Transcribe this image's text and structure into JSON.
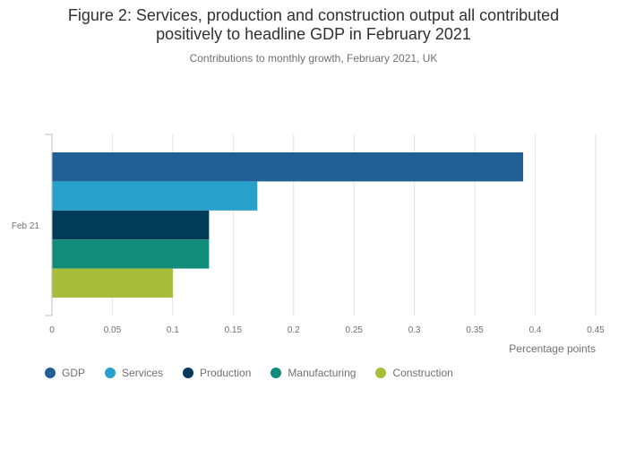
{
  "header": {
    "title_line1": "Figure 2: Services, production and construction output all contributed",
    "title_line2": "positively to headline GDP in February 2021",
    "subtitle": "Contributions to monthly growth, February 2021, UK"
  },
  "chart_data": {
    "type": "bar",
    "orientation": "horizontal",
    "categories": [
      "Feb 21"
    ],
    "series": [
      {
        "name": "GDP",
        "color": "#206095",
        "values": [
          0.39
        ]
      },
      {
        "name": "Services",
        "color": "#27a0cc",
        "values": [
          0.17
        ]
      },
      {
        "name": "Production",
        "color": "#003c57",
        "values": [
          0.13
        ]
      },
      {
        "name": "Manufacturing",
        "color": "#118c7b",
        "values": [
          0.13
        ]
      },
      {
        "name": "Construction",
        "color": "#a8bd3a",
        "values": [
          0.1
        ]
      }
    ],
    "xlabel": "Percentage points",
    "xlim": [
      0,
      0.45
    ],
    "xticks": [
      "0",
      "0.05",
      "0.1",
      "0.15",
      "0.2",
      "0.25",
      "0.3",
      "0.35",
      "0.4",
      "0.45"
    ],
    "grid": true,
    "legend_position": "bottom-left"
  }
}
